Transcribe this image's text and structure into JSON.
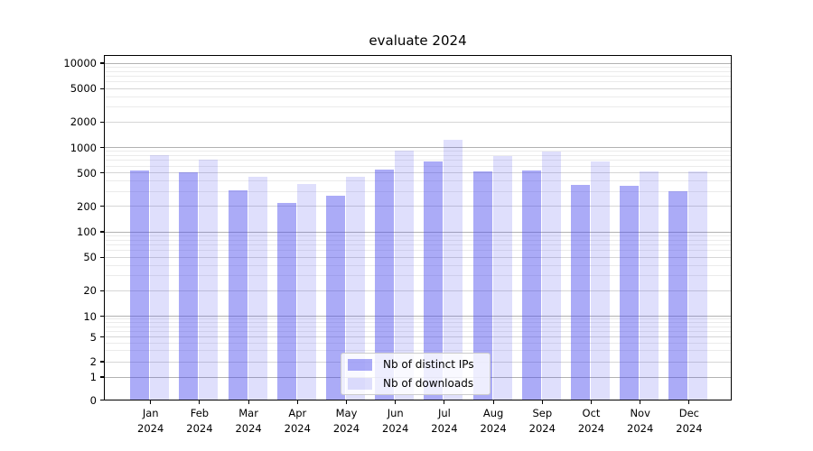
{
  "chart_data": {
    "type": "bar",
    "title": "evaluate 2024",
    "x_year_label": "2024",
    "categories": [
      "Jan",
      "Feb",
      "Mar",
      "Apr",
      "May",
      "Jun",
      "Jul",
      "Aug",
      "Sep",
      "Oct",
      "Nov",
      "Dec"
    ],
    "series": [
      {
        "name": "Nb of distinct IPs",
        "color": "rgba(68,68,238,0.45)",
        "values": [
          530,
          510,
          310,
          220,
          265,
          550,
          680,
          520,
          530,
          360,
          350,
          300
        ]
      },
      {
        "name": "Nb of downloads",
        "color": "rgba(68,68,238,0.17)",
        "values": [
          810,
          720,
          450,
          365,
          445,
          920,
          1230,
          800,
          890,
          680,
          520,
          520
        ]
      }
    ],
    "y_axis": {
      "scale": "symlog",
      "tick_values": [
        10000,
        5000,
        2000,
        1000,
        500,
        200,
        100,
        50,
        20,
        10,
        5,
        2,
        1,
        0
      ],
      "tick_labels": [
        "10000",
        "5000",
        "2000",
        "1000",
        "500",
        "200",
        "100",
        "50",
        "20",
        "10",
        "5",
        "2",
        "1",
        "0"
      ],
      "ylim": [
        0,
        13000
      ]
    },
    "legend_position": "bottom-center-inside",
    "grid": "on",
    "colors": {
      "major_grid": "#b2b2b2",
      "mid_grid": "#d6d6d6",
      "minor_grid": "#ebebeb",
      "axis": "#000000"
    }
  }
}
